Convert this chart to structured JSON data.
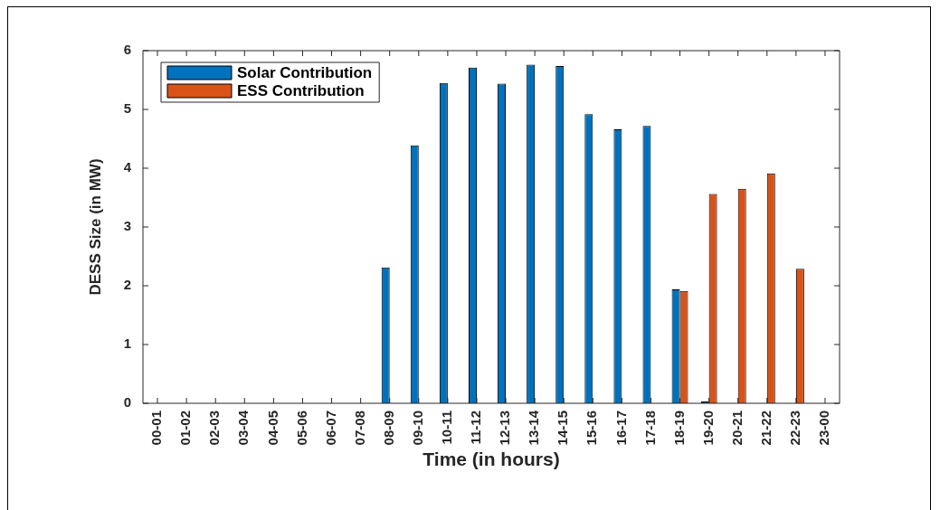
{
  "chart_data": {
    "type": "bar",
    "xlabel": "Time (in hours)",
    "ylabel": "DESS Size (in MW)",
    "categories": [
      "00-01",
      "01-02",
      "02-03",
      "03-04",
      "04-05",
      "05-06",
      "06-07",
      "07-08",
      "08-09",
      "09-10",
      "10-11",
      "11-12",
      "12-13",
      "13-14",
      "14-15",
      "15-16",
      "16-17",
      "17-18",
      "18-19",
      "19-20",
      "20-21",
      "21-22",
      "22-23",
      "23-00"
    ],
    "series": [
      {
        "name": "Solar Contribution",
        "color": "#0072bd",
        "values": [
          0,
          0,
          0,
          0,
          0,
          0,
          0,
          0,
          2.31,
          4.39,
          5.45,
          5.71,
          5.44,
          5.76,
          5.74,
          4.92,
          4.66,
          4.72,
          1.94,
          0.03,
          0,
          0,
          0,
          0
        ]
      },
      {
        "name": "ESS Contribution",
        "color": "#d95319",
        "values": [
          0,
          0,
          0,
          0,
          0,
          0,
          0,
          0,
          0,
          0,
          0,
          0,
          0,
          0,
          0,
          0,
          0,
          0,
          1.91,
          3.56,
          3.65,
          3.91,
          2.29,
          0
        ]
      }
    ],
    "ylim": [
      0,
      6
    ],
    "yticks": [
      0,
      1,
      2,
      3,
      4,
      5,
      6
    ],
    "legend": "top left"
  }
}
